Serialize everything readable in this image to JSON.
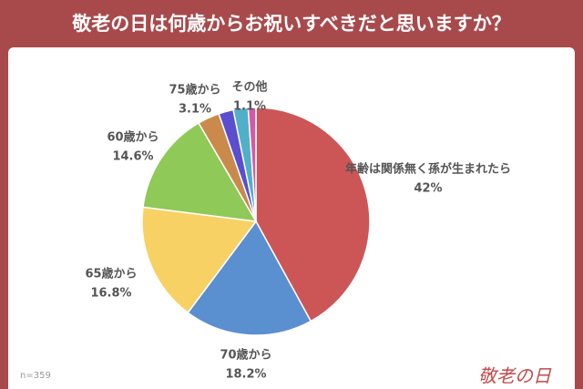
{
  "chart_data": {
    "type": "pie",
    "title": "敬老の日は何歳からお祝いすべきだと思いますか？",
    "categories": [
      "年齢は関係無く孫が生まれたら",
      "70歳から",
      "65歳から",
      "60歳から",
      "75歳から",
      null,
      null,
      "その他"
    ],
    "values": [
      42,
      18.2,
      16.8,
      14.6,
      3.1,
      2.1,
      2.1,
      1.1
    ],
    "value_labels": [
      "42%",
      "18.2%",
      "16.8%",
      "14.6%",
      "3.1%",
      null,
      null,
      "1.1%"
    ],
    "colors": [
      "#cc5656",
      "#5a8fd0",
      "#f8d165",
      "#8fc957",
      "#c98a4b",
      "#5b4fcf",
      "#4fb0c8",
      "#d35aa6"
    ],
    "note": "n=359"
  },
  "logo": "敬老の日"
}
